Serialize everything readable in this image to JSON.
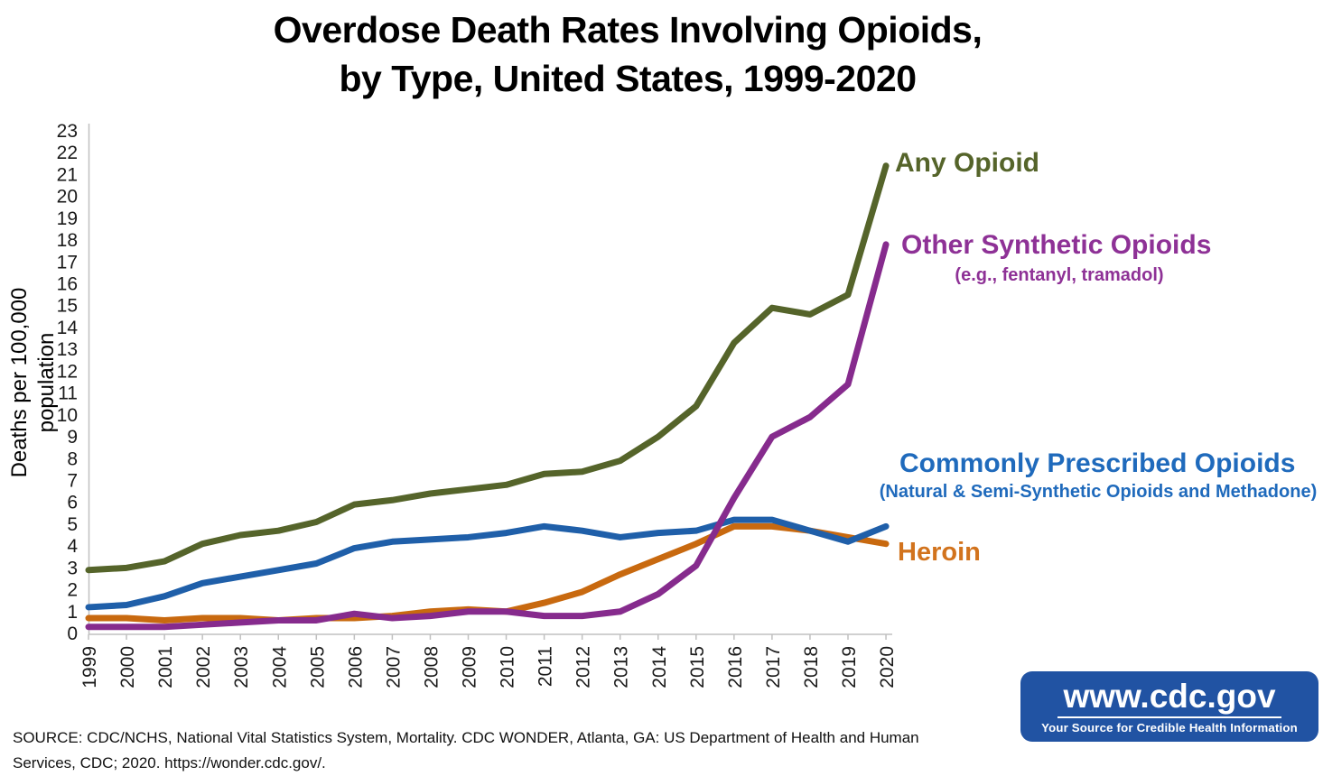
{
  "title": {
    "line1": "Overdose Death Rates Involving Opioids,",
    "line2": "by Type, United States, 1999-2020"
  },
  "y_axis": {
    "title": "Deaths per 100,000 population",
    "min": 0,
    "max": 23,
    "step": 1
  },
  "annotations": {
    "any_opioid": {
      "label": "Any Opioid",
      "color": "#55642A"
    },
    "other_synthetic": {
      "label": "Other Synthetic Opioids",
      "sublabel": "(e.g., fentanyl, tramadol)",
      "color": "#8E3196"
    },
    "commonly_prescribed": {
      "label": "Commonly Prescribed Opioids",
      "sublabel": "(Natural & Semi-Synthetic Opioids and Methadone)",
      "color": "#1F6ABC"
    },
    "heroin": {
      "label": "Heroin",
      "color": "#D2731D"
    }
  },
  "chart_data": {
    "type": "line",
    "title": "Overdose Death Rates Involving Opioids, by Type, United States, 1999-2020",
    "xlabel": "",
    "ylabel": "Deaths per 100,000 population",
    "ylim": [
      0,
      23
    ],
    "grid": false,
    "legend_position": "right-annotations",
    "x": [
      1999,
      2000,
      2001,
      2002,
      2003,
      2004,
      2005,
      2006,
      2007,
      2008,
      2009,
      2010,
      2011,
      2012,
      2013,
      2014,
      2015,
      2016,
      2017,
      2018,
      2019,
      2020
    ],
    "series": [
      {
        "name": "Any Opioid",
        "color": "#55642A",
        "values": [
          2.9,
          3.0,
          3.3,
          4.1,
          4.5,
          4.7,
          5.1,
          5.9,
          6.1,
          6.4,
          6.6,
          6.8,
          7.3,
          7.4,
          7.9,
          9.0,
          10.4,
          13.3,
          14.9,
          14.6,
          15.5,
          21.4
        ]
      },
      {
        "name": "Heroin",
        "color": "#C8690F",
        "values": [
          0.7,
          0.7,
          0.6,
          0.7,
          0.7,
          0.6,
          0.7,
          0.7,
          0.8,
          1.0,
          1.1,
          1.0,
          1.4,
          1.9,
          2.7,
          3.4,
          4.1,
          4.9,
          4.9,
          4.7,
          4.4,
          4.1
        ]
      },
      {
        "name": "Commonly Prescribed Opioids (Natural & Semi-Synthetic Opioids and Methadone)",
        "color": "#1F5FA9",
        "values": [
          1.2,
          1.3,
          1.7,
          2.3,
          2.6,
          2.9,
          3.2,
          3.9,
          4.2,
          4.3,
          4.4,
          4.6,
          4.9,
          4.7,
          4.4,
          4.6,
          4.7,
          5.2,
          5.2,
          4.7,
          4.2,
          4.9
        ]
      },
      {
        "name": "Other Synthetic Opioids (e.g., fentanyl, tramadol)",
        "color": "#862B8D",
        "values": [
          0.3,
          0.3,
          0.3,
          0.4,
          0.5,
          0.6,
          0.6,
          0.9,
          0.7,
          0.8,
          1.0,
          1.0,
          0.8,
          0.8,
          1.0,
          1.8,
          3.1,
          6.2,
          9.0,
          9.9,
          11.4,
          17.8
        ]
      }
    ]
  },
  "source": {
    "line1": "SOURCE: CDC/NCHS, National Vital Statistics System, Mortality. CDC WONDER, Atlanta, GA: US Department of Health and Human",
    "line2": "Services, CDC; 2020. https://wonder.cdc.gov/."
  },
  "logo": {
    "url_text": "www.cdc.gov",
    "tagline": "Your Source for Credible Health Information",
    "bg_color": "#2153A3"
  }
}
